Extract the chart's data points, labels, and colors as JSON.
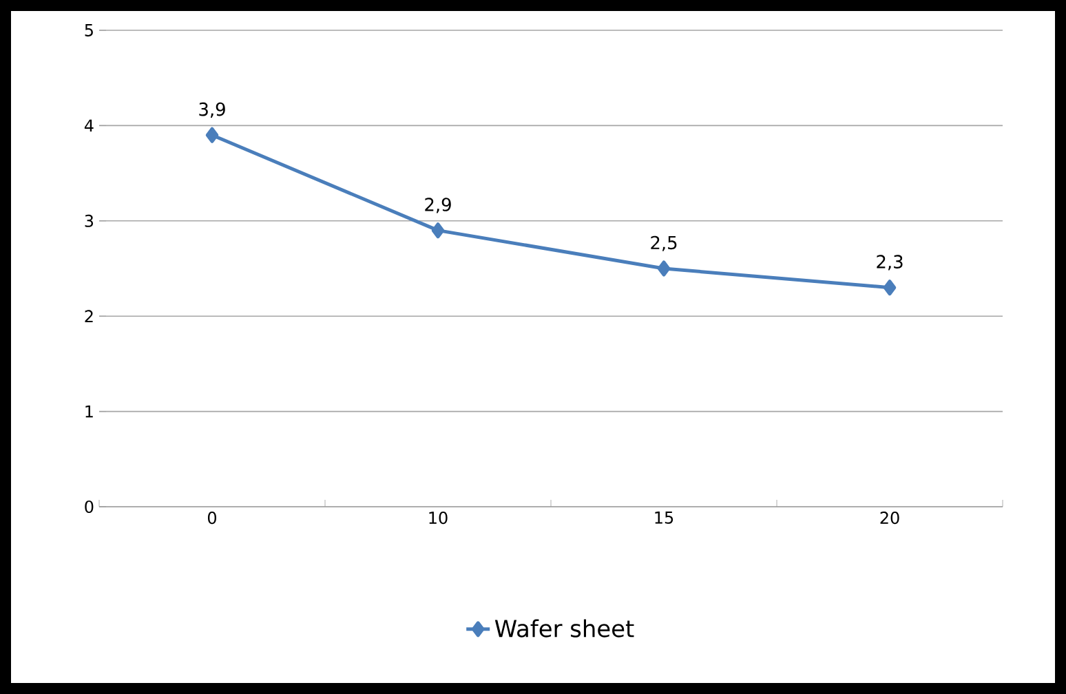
{
  "chart_data": {
    "type": "line",
    "categories": [
      "0",
      "10",
      "15",
      "20"
    ],
    "series": [
      {
        "name": "Wafer sheet",
        "color": "#4a7ebb",
        "values": [
          3.9,
          2.9,
          2.5,
          2.3
        ],
        "value_labels": [
          "3,9",
          "2,9",
          "2,5",
          "2,3"
        ]
      }
    ],
    "ylim": [
      0,
      5
    ],
    "yticks": [
      0,
      1,
      2,
      3,
      4,
      5
    ],
    "grid": "y",
    "legend": "bottom",
    "marker": "diamond",
    "line_style": "solid"
  }
}
